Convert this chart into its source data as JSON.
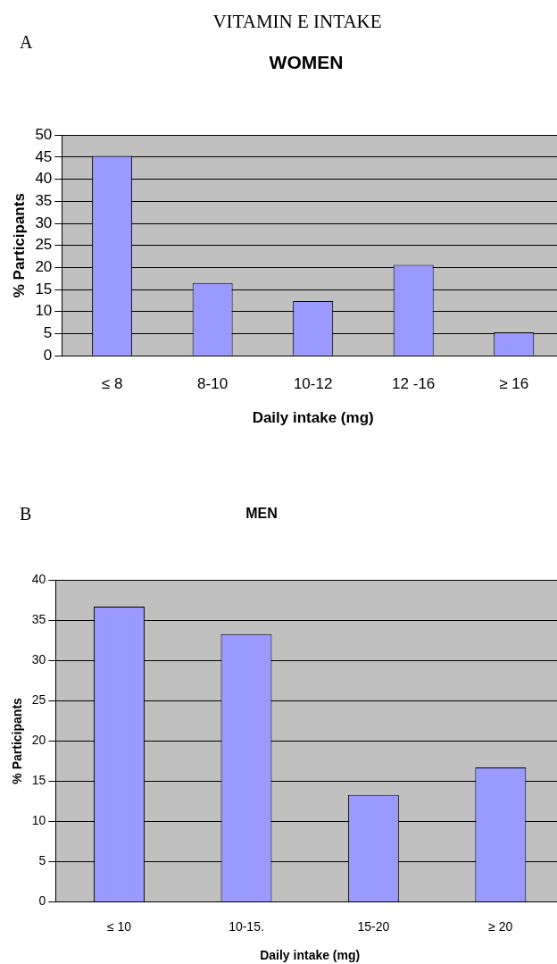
{
  "chart_data": [
    {
      "type": "bar",
      "title": "VITAMIN E INTAKE",
      "subtitle": "WOMEN",
      "annotations": [
        "A"
      ],
      "xlabel": "Daily intake (mg)",
      "ylabel": "% Participants",
      "categories": [
        "≤ 8",
        "8-10",
        "10-12",
        "12 -16",
        "≥ 16"
      ],
      "series": [
        {
          "color": "#9999ff",
          "values": [
            45.3,
            16.5,
            12.4,
            20.6,
            5.3
          ]
        }
      ],
      "ylim": [
        0,
        50
      ],
      "yticks": [
        0,
        5,
        10,
        15,
        20,
        25,
        30,
        35,
        40,
        45,
        50
      ],
      "grid": "y",
      "legend": false
    },
    {
      "type": "bar",
      "title": "MEN",
      "annotations": [
        "B"
      ],
      "xlabel": "Daily intake (mg)",
      "ylabel": "% Participants",
      "categories": [
        "≤ 10",
        "10-15.",
        "15-20",
        "≥ 20"
      ],
      "series": [
        {
          "color": "#9999ff",
          "values": [
            36.7,
            33.3,
            13.3,
            16.7
          ]
        }
      ],
      "ylim": [
        0,
        40
      ],
      "yticks": [
        0,
        5,
        10,
        15,
        20,
        25,
        30,
        35,
        40
      ],
      "grid": "y",
      "legend": false
    }
  ]
}
